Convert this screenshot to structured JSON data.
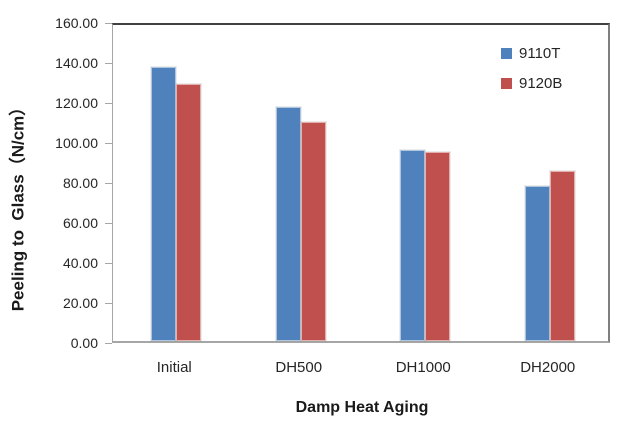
{
  "chart_data": {
    "type": "bar",
    "title": "",
    "categories": [
      "Initial",
      "DH500",
      "DH1000",
      "DH2000"
    ],
    "series": [
      {
        "name": "9110T",
        "color": "#4F81BD",
        "values": [
          137,
          117,
          95.5,
          77.5
        ]
      },
      {
        "name": "9120B",
        "color": "#C0504D",
        "values": [
          128.5,
          109.5,
          94.5,
          85
        ]
      }
    ],
    "xlabel": "Damp Heat Aging",
    "ylabel": "Peeling to  Glass（N/cm）",
    "ylim": [
      0,
      160
    ],
    "ytick_step": 20,
    "ytick_labels": [
      "0.00",
      "20.00",
      "40.00",
      "60.00",
      "80.00",
      "100.00",
      "120.00",
      "140.00",
      "160.00"
    ],
    "grid": false,
    "legend_position": "top-right"
  },
  "colors": {
    "series_blue": "#4F81BD",
    "series_red": "#C0504D",
    "axis_line": "#A6A6A6",
    "plot_border": "#7F7F7F",
    "text": "#262626"
  }
}
